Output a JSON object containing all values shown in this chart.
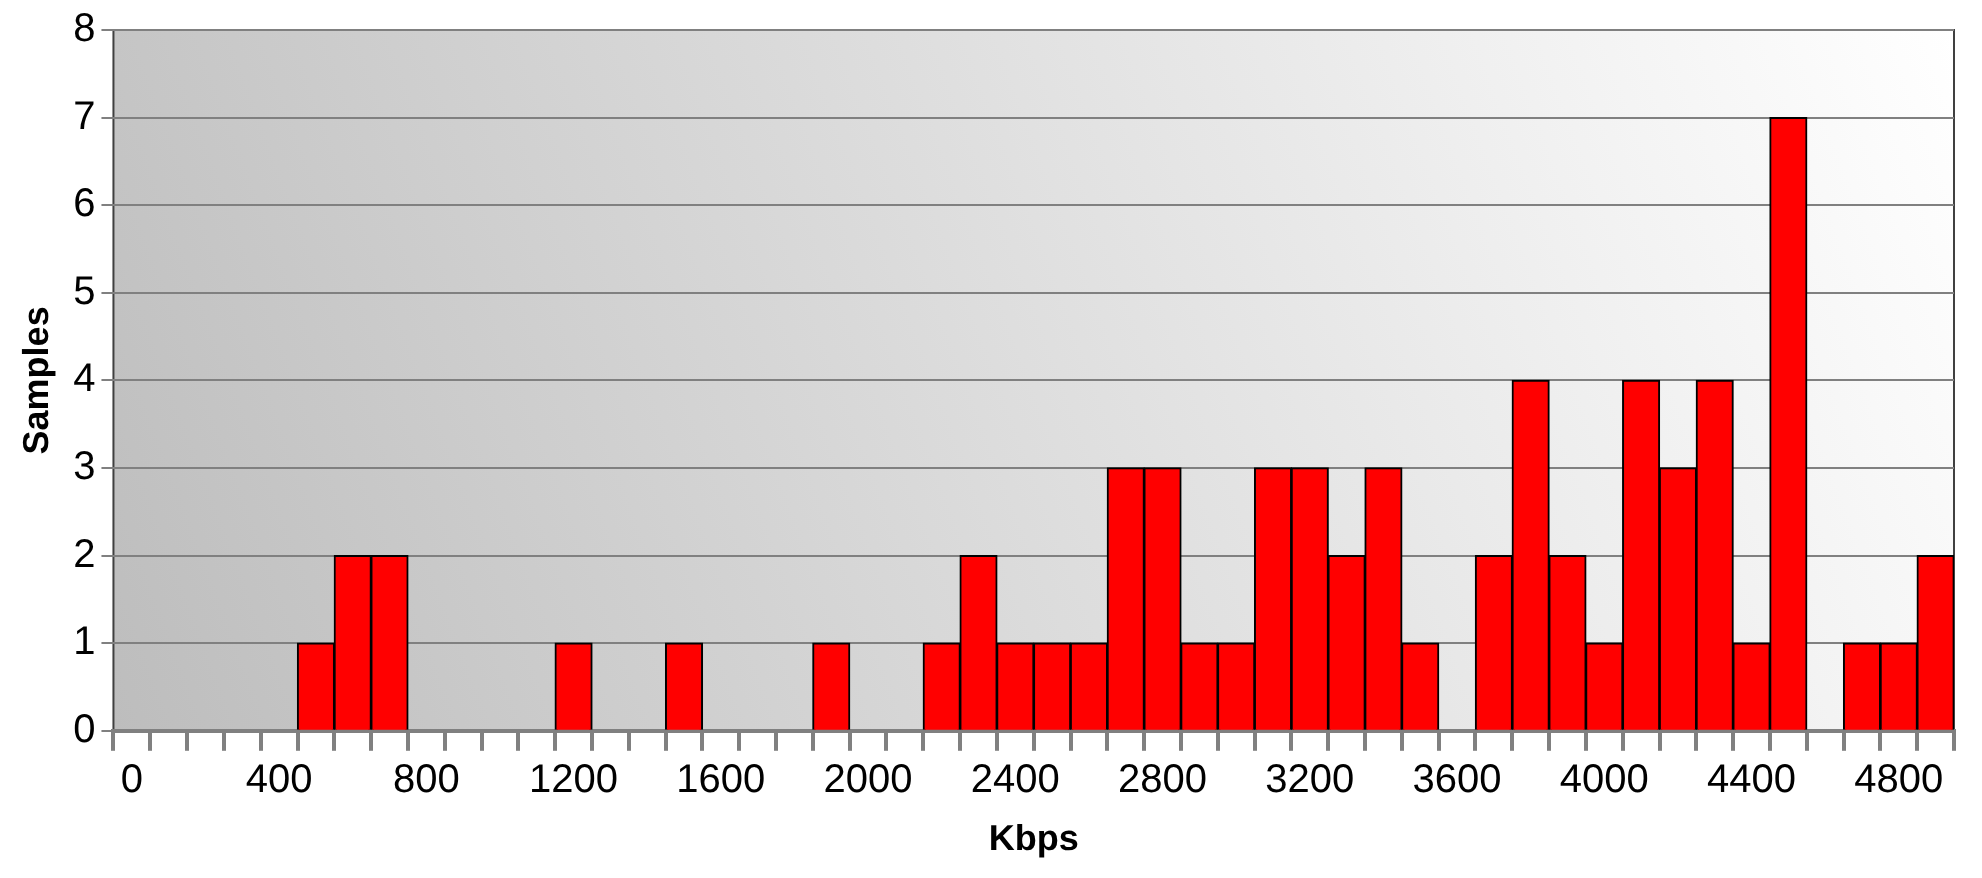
{
  "chart_data": {
    "type": "bar",
    "xlabel": "Kbps",
    "ylabel": "Samples",
    "categories": [
      "0",
      null,
      null,
      null,
      "400",
      null,
      null,
      null,
      "800",
      null,
      null,
      null,
      "1200",
      null,
      null,
      null,
      "1600",
      null,
      null,
      null,
      "2000",
      null,
      null,
      null,
      "2400",
      null,
      null,
      null,
      "2800",
      null,
      null,
      null,
      "3200",
      null,
      null,
      null,
      "3600",
      null,
      null,
      null,
      "4000",
      null,
      null,
      null,
      "4400",
      null,
      null,
      null,
      "4800",
      null
    ],
    "values": [
      0,
      0,
      0,
      0,
      0,
      1,
      2,
      2,
      0,
      0,
      0,
      0,
      1,
      0,
      0,
      1,
      0,
      0,
      0,
      1,
      0,
      0,
      1,
      2,
      1,
      1,
      1,
      3,
      3,
      1,
      1,
      3,
      3,
      2,
      3,
      1,
      0,
      2,
      4,
      2,
      1,
      4,
      3,
      4,
      1,
      7,
      0,
      1,
      1,
      2
    ],
    "color": "#ff0000",
    "ylim": [
      0,
      8
    ],
    "yticks": [
      0,
      1,
      2,
      3,
      4,
      5,
      6,
      7,
      8
    ],
    "grid": "y",
    "legend": false
  }
}
